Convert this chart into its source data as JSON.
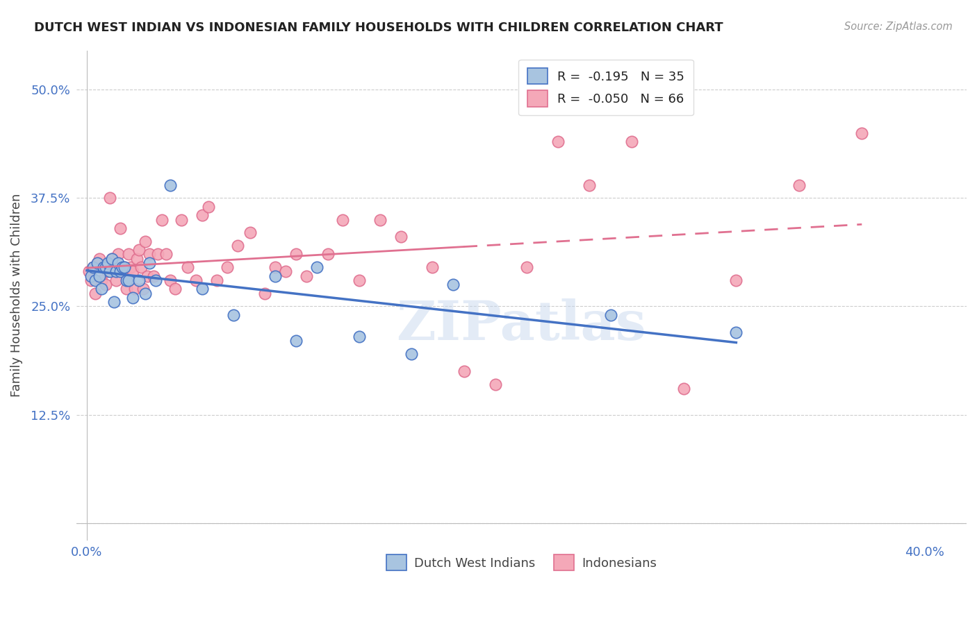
{
  "title": "DUTCH WEST INDIAN VS INDONESIAN FAMILY HOUSEHOLDS WITH CHILDREN CORRELATION CHART",
  "source": "Source: ZipAtlas.com",
  "ylabel_label": "Family Households with Children",
  "xlim": [
    -0.005,
    0.42
  ],
  "ylim": [
    -0.02,
    0.545
  ],
  "x_ticks": [
    0.0,
    0.08,
    0.16,
    0.24,
    0.32,
    0.4
  ],
  "x_tick_labels": [
    "0.0%",
    "",
    "",
    "",
    "",
    "40.0%"
  ],
  "y_ticks": [
    0.0,
    0.125,
    0.25,
    0.375,
    0.5
  ],
  "y_tick_labels": [
    "",
    "12.5%",
    "25.0%",
    "37.5%",
    "50.0%"
  ],
  "legend_label1": "R =  -0.195   N = 35",
  "legend_label2": "R =  -0.050   N = 66",
  "legend_label_bottom1": "Dutch West Indians",
  "legend_label_bottom2": "Indonesians",
  "color_blue_fill": "#a8c4e0",
  "color_pink_fill": "#f4a8b8",
  "color_blue_line": "#4472c4",
  "color_pink_line": "#e07090",
  "watermark": "ZIPatlas",
  "dwi_x": [
    0.002,
    0.003,
    0.004,
    0.005,
    0.006,
    0.007,
    0.008,
    0.009,
    0.01,
    0.011,
    0.012,
    0.013,
    0.014,
    0.015,
    0.016,
    0.017,
    0.018,
    0.019,
    0.02,
    0.022,
    0.025,
    0.028,
    0.03,
    0.033,
    0.04,
    0.055,
    0.07,
    0.09,
    0.1,
    0.11,
    0.13,
    0.155,
    0.175,
    0.25,
    0.31
  ],
  "dwi_y": [
    0.285,
    0.295,
    0.28,
    0.3,
    0.285,
    0.27,
    0.295,
    0.295,
    0.3,
    0.29,
    0.305,
    0.255,
    0.29,
    0.3,
    0.29,
    0.295,
    0.295,
    0.28,
    0.28,
    0.26,
    0.28,
    0.265,
    0.3,
    0.28,
    0.39,
    0.27,
    0.24,
    0.285,
    0.21,
    0.295,
    0.215,
    0.195,
    0.275,
    0.24,
    0.22
  ],
  "ind_x": [
    0.001,
    0.002,
    0.003,
    0.004,
    0.005,
    0.006,
    0.007,
    0.008,
    0.009,
    0.01,
    0.011,
    0.012,
    0.013,
    0.014,
    0.015,
    0.016,
    0.017,
    0.018,
    0.019,
    0.02,
    0.021,
    0.022,
    0.023,
    0.024,
    0.025,
    0.026,
    0.027,
    0.028,
    0.029,
    0.03,
    0.032,
    0.034,
    0.036,
    0.038,
    0.04,
    0.042,
    0.045,
    0.048,
    0.052,
    0.055,
    0.058,
    0.062,
    0.067,
    0.072,
    0.078,
    0.085,
    0.09,
    0.095,
    0.1,
    0.105,
    0.115,
    0.122,
    0.13,
    0.14,
    0.15,
    0.165,
    0.18,
    0.195,
    0.21,
    0.225,
    0.24,
    0.26,
    0.285,
    0.31,
    0.34,
    0.37
  ],
  "ind_y": [
    0.29,
    0.28,
    0.295,
    0.265,
    0.3,
    0.305,
    0.28,
    0.295,
    0.275,
    0.29,
    0.375,
    0.305,
    0.295,
    0.28,
    0.31,
    0.34,
    0.29,
    0.295,
    0.27,
    0.31,
    0.295,
    0.29,
    0.27,
    0.305,
    0.315,
    0.295,
    0.27,
    0.325,
    0.285,
    0.31,
    0.285,
    0.31,
    0.35,
    0.31,
    0.28,
    0.27,
    0.35,
    0.295,
    0.28,
    0.355,
    0.365,
    0.28,
    0.295,
    0.32,
    0.335,
    0.265,
    0.295,
    0.29,
    0.31,
    0.285,
    0.31,
    0.35,
    0.28,
    0.35,
    0.33,
    0.295,
    0.175,
    0.16,
    0.295,
    0.44,
    0.39,
    0.44,
    0.155,
    0.28,
    0.39,
    0.45
  ]
}
